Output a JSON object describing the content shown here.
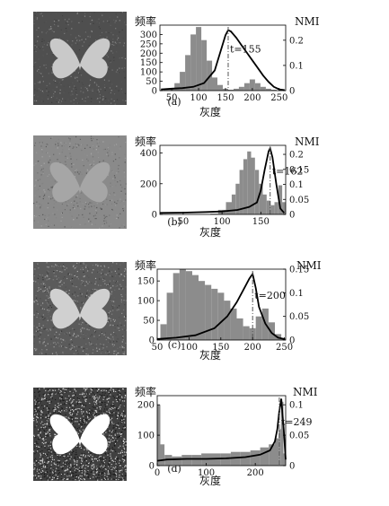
{
  "chart_data": [
    {
      "type": "bar",
      "panel_label": "(a)",
      "ylabel_left": "频率",
      "ylabel_right": "NMI",
      "xlabel": "灰度",
      "xlim": [
        28,
        262
      ],
      "xticks": [
        50,
        100,
        150,
        200,
        250
      ],
      "ylim_left": [
        0,
        350
      ],
      "yticks_left": [
        0,
        50,
        100,
        150,
        200,
        250,
        300
      ],
      "ylim_right": [
        0,
        0.26
      ],
      "yticks_right": [
        0,
        0.1,
        0.2
      ],
      "ytick_right_labels": [
        "0",
        "0.1",
        "0.2"
      ],
      "histogram": {
        "x": [
          40,
          50,
          60,
          70,
          80,
          90,
          100,
          110,
          120,
          130,
          140,
          150,
          160,
          170,
          180,
          190,
          200,
          210,
          220,
          230,
          240,
          250
        ],
        "values": [
          5,
          10,
          40,
          100,
          190,
          300,
          340,
          270,
          160,
          70,
          30,
          10,
          5,
          10,
          20,
          40,
          60,
          40,
          20,
          10,
          5,
          0
        ]
      },
      "nmi": {
        "x": [
          30,
          50,
          70,
          90,
          110,
          130,
          140,
          150,
          155,
          160,
          170,
          180,
          190,
          200,
          210,
          220,
          230,
          240,
          250,
          260
        ],
        "values": [
          0.005,
          0.008,
          0.01,
          0.015,
          0.03,
          0.08,
          0.15,
          0.22,
          0.24,
          0.235,
          0.21,
          0.18,
          0.15,
          0.12,
          0.09,
          0.06,
          0.035,
          0.015,
          0.005,
          0.002
        ]
      },
      "threshold": 155,
      "threshold_label": "t=155"
    },
    {
      "type": "bar",
      "panel_label": "(b)",
      "ylabel_left": "频率",
      "ylabel_right": "NMI",
      "xlabel": "灰度",
      "xlim": [
        20,
        182
      ],
      "xticks": [
        50,
        100,
        150
      ],
      "ylim_left": [
        0,
        450
      ],
      "yticks_left": [
        0,
        200,
        400
      ],
      "ylim_right": [
        0,
        0.23
      ],
      "yticks_right": [
        0,
        0.05,
        0.1,
        0.15,
        0.2
      ],
      "ytick_right_labels": [
        "0",
        "0.05",
        "0.1",
        "0.15",
        "0.2"
      ],
      "histogram": {
        "x": [
          90,
          100,
          110,
          115,
          120,
          125,
          130,
          135,
          140,
          145,
          150,
          155,
          160,
          165,
          170,
          175,
          180
        ],
        "values": [
          5,
          30,
          80,
          130,
          200,
          290,
          360,
          410,
          370,
          290,
          200,
          130,
          90,
          60,
          80,
          190,
          80
        ]
      },
      "nmi": {
        "x": [
          20,
          50,
          80,
          100,
          120,
          135,
          145,
          150,
          155,
          160,
          162,
          165,
          170,
          175,
          180
        ],
        "values": [
          0.005,
          0.006,
          0.008,
          0.01,
          0.015,
          0.025,
          0.04,
          0.08,
          0.15,
          0.21,
          0.22,
          0.19,
          0.1,
          0.02,
          0.005
        ]
      },
      "threshold": 162,
      "threshold_label": "t=162"
    },
    {
      "type": "bar",
      "panel_label": "(c)",
      "ylabel_left": "频率",
      "ylabel_right": "NMI",
      "xlabel": "灰度",
      "xlim": [
        50,
        252
      ],
      "xticks": [
        50,
        100,
        150,
        200,
        250
      ],
      "ylim_left": [
        0,
        180
      ],
      "yticks_left": [
        0,
        50,
        100,
        150
      ],
      "ylim_right": [
        0,
        0.15
      ],
      "yticks_right": [
        0,
        0.05,
        0.1,
        0.15
      ],
      "ytick_right_labels": [
        "0",
        "0.05",
        "0.1",
        "0.15"
      ],
      "histogram": {
        "x": [
          60,
          70,
          80,
          90,
          100,
          110,
          120,
          130,
          140,
          150,
          160,
          170,
          180,
          190,
          200,
          210,
          220,
          230,
          240,
          250
        ],
        "values": [
          40,
          120,
          170,
          180,
          175,
          165,
          150,
          140,
          130,
          120,
          100,
          80,
          55,
          35,
          30,
          60,
          80,
          45,
          15,
          5
        ]
      },
      "nmi": {
        "x": [
          50,
          80,
          110,
          140,
          160,
          175,
          185,
          195,
          200,
          205,
          210,
          220,
          230,
          240,
          250
        ],
        "values": [
          0.002,
          0.005,
          0.01,
          0.025,
          0.05,
          0.08,
          0.105,
          0.13,
          0.14,
          0.11,
          0.07,
          0.035,
          0.015,
          0.005,
          0.002
        ]
      },
      "threshold": 200,
      "threshold_label": "t=200"
    },
    {
      "type": "bar",
      "panel_label": "(d)",
      "ylabel_left": "频率",
      "ylabel_right": "NMI",
      "xlabel": "灰度",
      "xlim": [
        0,
        262
      ],
      "xticks": [
        0,
        100,
        200
      ],
      "ylim_left": [
        0,
        230
      ],
      "yticks_left": [
        0,
        100,
        200
      ],
      "ylim_right": [
        0,
        0.115
      ],
      "yticks_right": [
        0,
        0.05,
        0.1
      ],
      "ytick_right_labels": [
        "0",
        "0.05",
        "0.1"
      ],
      "histogram": {
        "x": [
          3,
          10,
          20,
          40,
          60,
          80,
          100,
          120,
          140,
          160,
          180,
          200,
          220,
          235,
          245,
          250,
          255,
          260
        ],
        "values": [
          200,
          70,
          35,
          30,
          35,
          35,
          40,
          40,
          40,
          45,
          45,
          50,
          60,
          70,
          90,
          120,
          210,
          40
        ]
      },
      "nmi": {
        "x": [
          0,
          20,
          60,
          100,
          140,
          180,
          210,
          230,
          240,
          245,
          249,
          253,
          258,
          262
        ],
        "values": [
          0.008,
          0.01,
          0.011,
          0.011,
          0.012,
          0.014,
          0.018,
          0.025,
          0.04,
          0.06,
          0.09,
          0.11,
          0.06,
          0.01
        ]
      },
      "threshold": 249,
      "threshold_label": "t=249"
    }
  ],
  "images": [
    {
      "background": "#4f4f4f",
      "butterfly": "#c9c9c9",
      "noise": "low"
    },
    {
      "background": "#8a8a8a",
      "butterfly": "#a6a6a6",
      "noise": "low"
    },
    {
      "background": "#5b5b5b",
      "butterfly": "#d0d0d0",
      "noise": "medium"
    },
    {
      "background": "#404040",
      "butterfly": "#ffffff",
      "noise": "high"
    }
  ],
  "colors": {
    "histogram_bar": "#8c8c8c",
    "nmi_line": "#000000",
    "threshold_line": "#555555",
    "axis": "#000000"
  }
}
